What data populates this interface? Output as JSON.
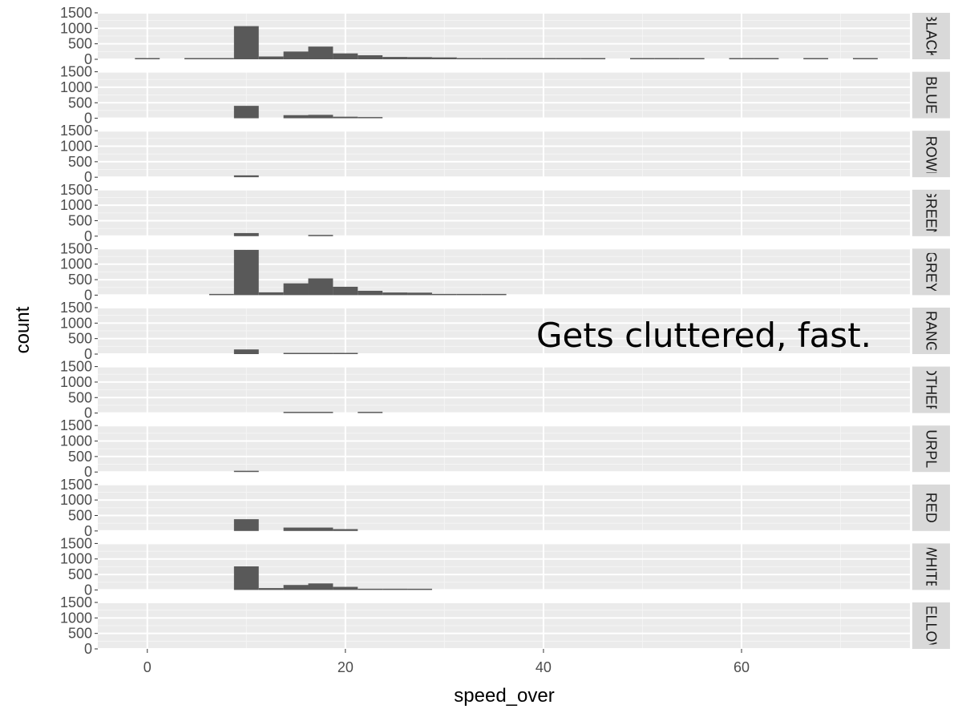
{
  "chart_data": {
    "type": "bar",
    "layout": "faceted-histogram",
    "xlabel": "speed_over",
    "ylabel": "count",
    "xlim": [
      -5,
      77
    ],
    "ylim": [
      0,
      1500
    ],
    "x_ticks": [
      0,
      20,
      40,
      60
    ],
    "y_ticks": [
      0,
      500,
      1000,
      1500
    ],
    "grid": true,
    "bin_width": 2.5,
    "annotation": "Gets cluttered, fast.",
    "facets": [
      {
        "label": "BLACK",
        "bins": [
          {
            "x": 0,
            "count": 10
          },
          {
            "x": 5,
            "count": 4
          },
          {
            "x": 7.5,
            "count": 6
          },
          {
            "x": 10,
            "count": 1070
          },
          {
            "x": 12.5,
            "count": 90
          },
          {
            "x": 15,
            "count": 250
          },
          {
            "x": 17.5,
            "count": 410
          },
          {
            "x": 20,
            "count": 190
          },
          {
            "x": 22.5,
            "count": 130
          },
          {
            "x": 25,
            "count": 75
          },
          {
            "x": 27.5,
            "count": 70
          },
          {
            "x": 30,
            "count": 60
          },
          {
            "x": 32.5,
            "count": 20
          },
          {
            "x": 35,
            "count": 15
          },
          {
            "x": 37.5,
            "count": 10
          },
          {
            "x": 40,
            "count": 10
          },
          {
            "x": 42.5,
            "count": 8
          },
          {
            "x": 45,
            "count": 5
          },
          {
            "x": 50,
            "count": 5
          },
          {
            "x": 52.5,
            "count": 5
          },
          {
            "x": 55,
            "count": 5
          },
          {
            "x": 60,
            "count": 5
          },
          {
            "x": 62.5,
            "count": 5
          },
          {
            "x": 67.5,
            "count": 5
          },
          {
            "x": 72.5,
            "count": 5
          }
        ]
      },
      {
        "label": "BLUE",
        "bins": [
          {
            "x": 10,
            "count": 400
          },
          {
            "x": 15,
            "count": 100
          },
          {
            "x": 17.5,
            "count": 110
          },
          {
            "x": 20,
            "count": 50
          },
          {
            "x": 22.5,
            "count": 30
          }
        ]
      },
      {
        "label": "BROWN",
        "bins": [
          {
            "x": 10,
            "count": 60
          }
        ]
      },
      {
        "label": "GREEN",
        "bins": [
          {
            "x": 10,
            "count": 100
          },
          {
            "x": 17.5,
            "count": 40
          }
        ]
      },
      {
        "label": "GREY",
        "bins": [
          {
            "x": 7.5,
            "count": 30
          },
          {
            "x": 10,
            "count": 1460
          },
          {
            "x": 12.5,
            "count": 90
          },
          {
            "x": 15,
            "count": 380
          },
          {
            "x": 17.5,
            "count": 540
          },
          {
            "x": 20,
            "count": 270
          },
          {
            "x": 22.5,
            "count": 140
          },
          {
            "x": 25,
            "count": 85
          },
          {
            "x": 27.5,
            "count": 80
          },
          {
            "x": 30,
            "count": 30
          },
          {
            "x": 32.5,
            "count": 25
          },
          {
            "x": 35,
            "count": 20
          }
        ]
      },
      {
        "label": "ORANGE",
        "bins": [
          {
            "x": 10,
            "count": 150
          },
          {
            "x": 15,
            "count": 25
          },
          {
            "x": 17.5,
            "count": 25
          },
          {
            "x": 20,
            "count": 25
          }
        ]
      },
      {
        "label": "OTHER",
        "bins": [
          {
            "x": 15,
            "count": 25
          },
          {
            "x": 17.5,
            "count": 25
          },
          {
            "x": 22.5,
            "count": 25
          }
        ]
      },
      {
        "label": "PURPLE",
        "bins": [
          {
            "x": 10,
            "count": 40
          }
        ]
      },
      {
        "label": "RED",
        "bins": [
          {
            "x": 10,
            "count": 380
          },
          {
            "x": 15,
            "count": 110
          },
          {
            "x": 17.5,
            "count": 110
          },
          {
            "x": 20,
            "count": 60
          }
        ]
      },
      {
        "label": "WHITE",
        "bins": [
          {
            "x": 10,
            "count": 760
          },
          {
            "x": 12.5,
            "count": 60
          },
          {
            "x": 15,
            "count": 160
          },
          {
            "x": 17.5,
            "count": 210
          },
          {
            "x": 20,
            "count": 100
          },
          {
            "x": 22.5,
            "count": 40
          },
          {
            "x": 25,
            "count": 40
          },
          {
            "x": 27.5,
            "count": 35
          }
        ]
      },
      {
        "label": "YELLOW",
        "bins": []
      }
    ]
  }
}
